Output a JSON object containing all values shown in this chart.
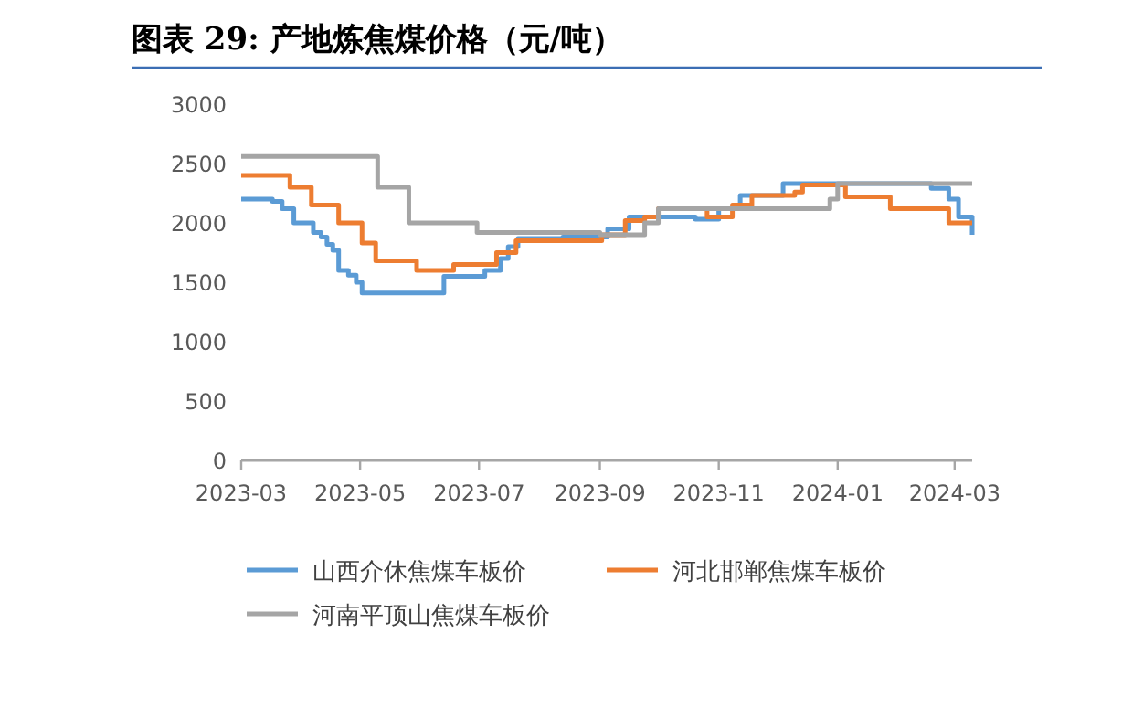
{
  "chart_data": {
    "type": "step",
    "title": "图表 29: 产地炼焦煤价格（元/吨）",
    "xlim": [
      "2023-03-01",
      "2024-03-10"
    ],
    "xticks": [
      "2023-03",
      "2023-05",
      "2023-07",
      "2023-09",
      "2023-11",
      "2024-01",
      "2024-03"
    ],
    "ylim": [
      0,
      3000
    ],
    "yticks": [
      0,
      500,
      1000,
      1500,
      2000,
      2500,
      3000
    ],
    "grid": false,
    "legend": "bottom",
    "marker": "none",
    "line_style": "solid",
    "series": [
      {
        "name": "山西介休焦煤车板价",
        "color": "#5b9bd5",
        "x": [
          "2023-03-01",
          "2023-03-17",
          "2023-03-22",
          "2023-03-28",
          "2023-04-07",
          "2023-04-11",
          "2023-04-14",
          "2023-04-17",
          "2023-04-20",
          "2023-04-25",
          "2023-04-29",
          "2023-05-02",
          "2023-06-13",
          "2023-07-04",
          "2023-07-12",
          "2023-07-16",
          "2023-07-21",
          "2023-08-13",
          "2023-09-05",
          "2023-09-16",
          "2023-10-01",
          "2023-10-20",
          "2023-11-01",
          "2023-11-12",
          "2023-12-04",
          "2024-02-18",
          "2024-02-27",
          "2024-03-03",
          "2024-03-10"
        ],
        "values": [
          2200,
          2180,
          2120,
          2000,
          1920,
          1880,
          1820,
          1770,
          1600,
          1560,
          1500,
          1410,
          1550,
          1600,
          1700,
          1800,
          1870,
          1880,
          1950,
          2050,
          2050,
          2030,
          2120,
          2230,
          2330,
          2290,
          2200,
          2050,
          1900
        ]
      },
      {
        "name": "河北邯郸焦煤车板价",
        "color": "#ed7d31",
        "x": [
          "2023-03-01",
          "2023-03-26",
          "2023-04-06",
          "2023-04-20",
          "2023-05-02",
          "2023-05-09",
          "2023-05-30",
          "2023-06-18",
          "2023-07-10",
          "2023-07-20",
          "2023-09-02",
          "2023-09-14",
          "2023-09-24",
          "2023-10-01",
          "2023-10-26",
          "2023-11-08",
          "2023-11-18",
          "2023-12-10",
          "2023-12-14",
          "2024-01-05",
          "2024-01-28",
          "2024-02-27",
          "2024-03-10"
        ],
        "values": [
          2400,
          2300,
          2150,
          2000,
          1830,
          1680,
          1600,
          1650,
          1750,
          1850,
          1900,
          2020,
          2050,
          2120,
          2050,
          2150,
          2230,
          2260,
          2320,
          2220,
          2120,
          2000,
          2000
        ]
      },
      {
        "name": "河南平顶山焦煤车板价",
        "color": "#a5a5a5",
        "x": [
          "2023-03-01",
          "2023-05-10",
          "2023-05-26",
          "2023-06-30",
          "2023-09-01",
          "2023-09-24",
          "2023-10-01",
          "2023-12-28",
          "2024-01-01",
          "2024-03-10"
        ],
        "values": [
          2560,
          2300,
          2000,
          1920,
          1900,
          2000,
          2120,
          2200,
          2330,
          2330
        ]
      }
    ]
  }
}
